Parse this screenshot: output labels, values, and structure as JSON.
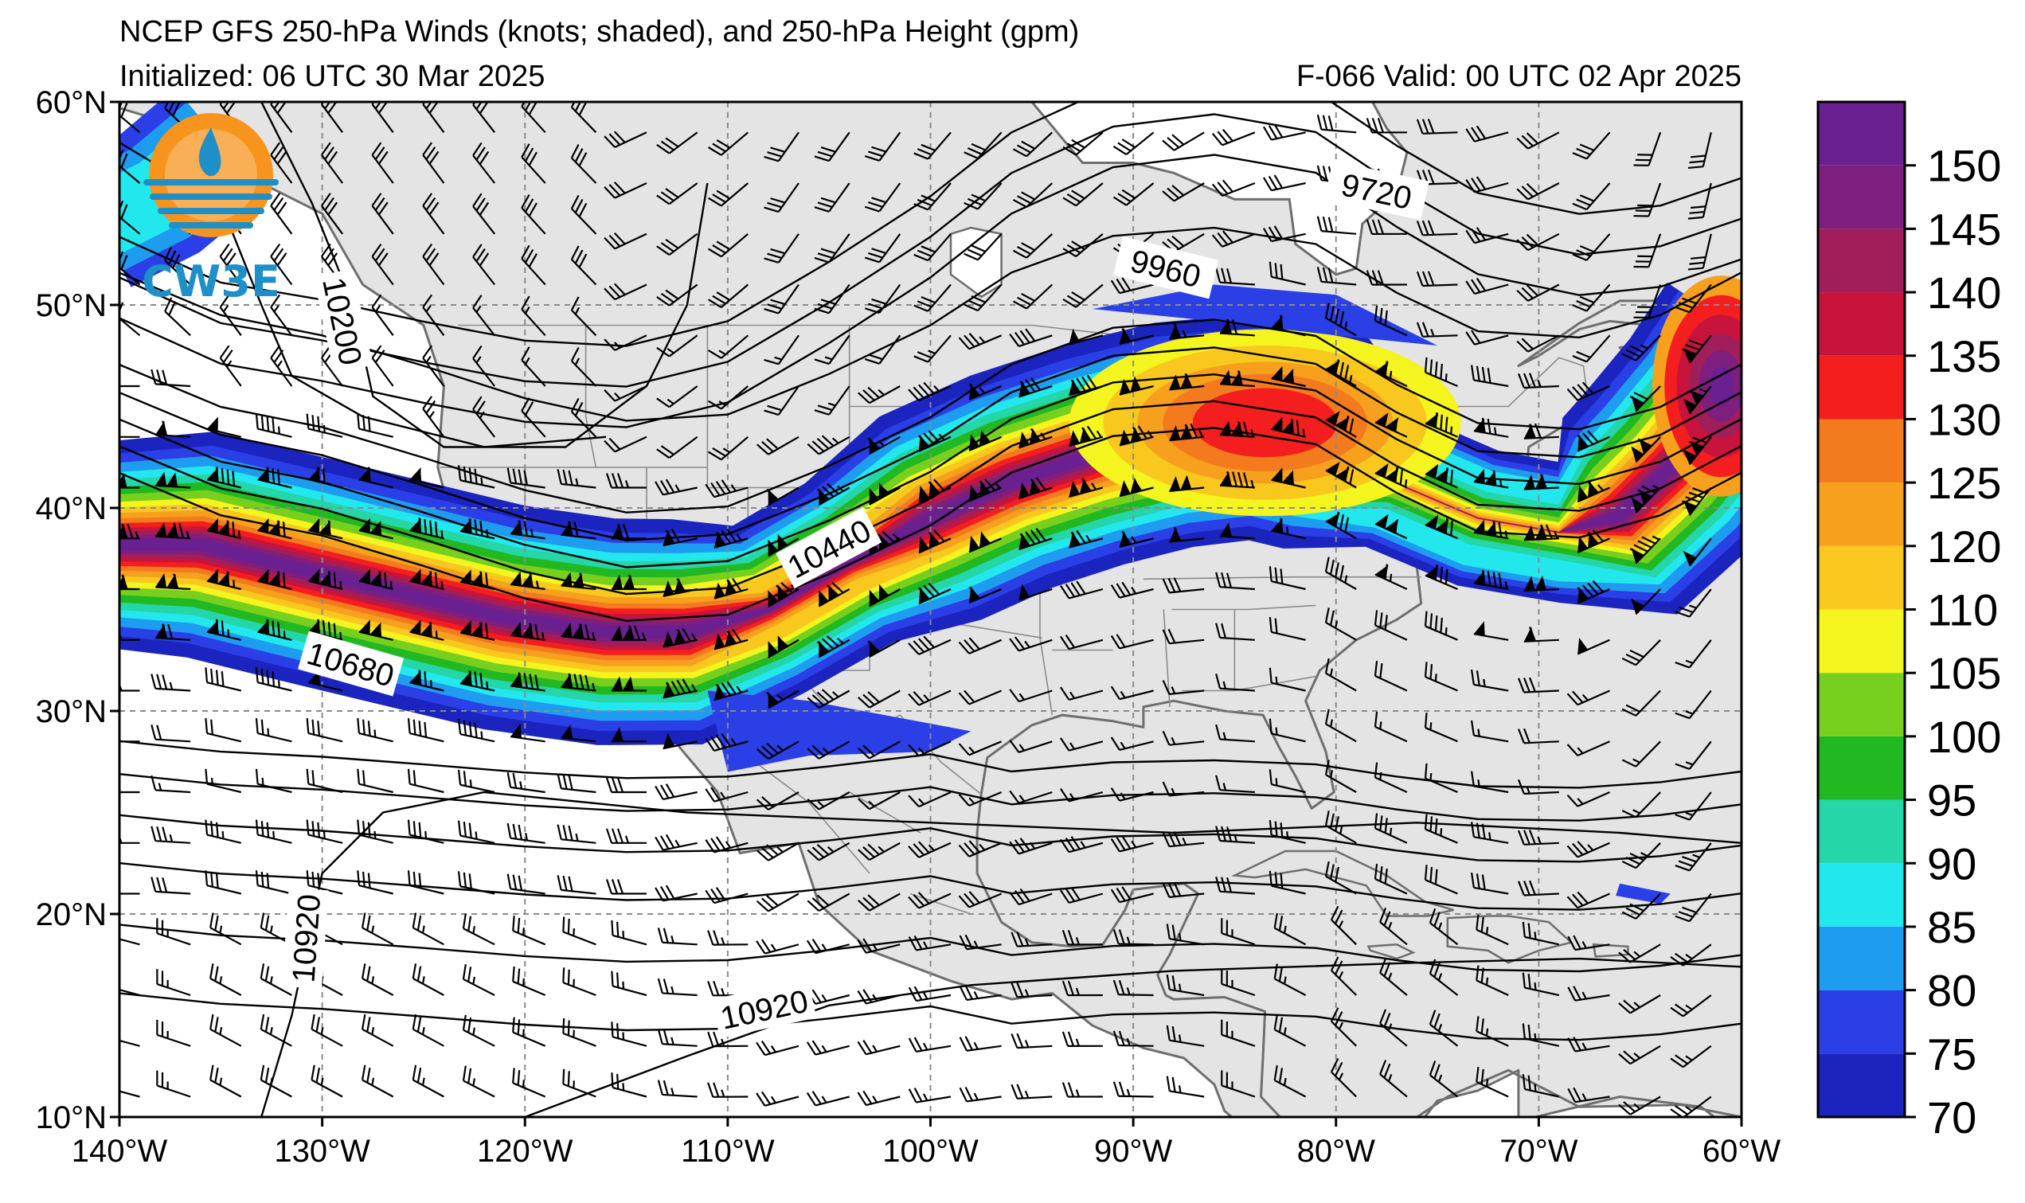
{
  "header": {
    "title": "NCEP GFS 250-hPa Winds (knots; shaded), and 250-hPa Height (gpm)",
    "initialized": "Initialized: 06 UTC 30 Mar 2025",
    "valid": "F-066  Valid: 00 UTC 02 Apr 2025"
  },
  "logo": {
    "text": "CW3E"
  },
  "map": {
    "lon_range": [
      -140,
      -60
    ],
    "lat_range": [
      10,
      60
    ],
    "lon_ticks": [
      {
        "value": -140,
        "label": "140°W"
      },
      {
        "value": -130,
        "label": "130°W"
      },
      {
        "value": -120,
        "label": "120°W"
      },
      {
        "value": -110,
        "label": "110°W"
      },
      {
        "value": -100,
        "label": "100°W"
      },
      {
        "value": -90,
        "label": "90°W"
      },
      {
        "value": -80,
        "label": "80°W"
      },
      {
        "value": -70,
        "label": "70°W"
      },
      {
        "value": -60,
        "label": "60°W"
      }
    ],
    "lat_ticks": [
      {
        "value": 60,
        "label": "60°N"
      },
      {
        "value": 50,
        "label": "50°N"
      },
      {
        "value": 40,
        "label": "40°N"
      },
      {
        "value": 30,
        "label": "30°N"
      },
      {
        "value": 20,
        "label": "20°N"
      },
      {
        "value": 10,
        "label": "10°N"
      }
    ],
    "gridlines": "dashed",
    "land_color": "#e4e4e4",
    "ocean_color": "#ffffff"
  },
  "height_contours": [
    {
      "label": "9720",
      "lon": -78,
      "lat": 55.6
    },
    {
      "label": "9960",
      "lon": -88.4,
      "lat": 51.8
    },
    {
      "label": "10200",
      "lon": -129,
      "lat": 49.2
    },
    {
      "label": "10440",
      "lon": -105,
      "lat": 38.0
    },
    {
      "label": "10680",
      "lon": -128.6,
      "lat": 32.3
    },
    {
      "label": "10920",
      "lon": -130.8,
      "lat": 18.8
    },
    {
      "label": "10920",
      "lon": -108.2,
      "lat": 15.3
    }
  ],
  "colorbar": {
    "levels": [
      70,
      75,
      80,
      85,
      90,
      95,
      100,
      105,
      110,
      120,
      125,
      130,
      135,
      140,
      145,
      150
    ],
    "labels": [
      "70",
      "75",
      "80",
      "85",
      "90",
      "95",
      "100",
      "105",
      "110",
      "120",
      "125",
      "130",
      "135",
      "140",
      "145",
      "150"
    ],
    "colors": [
      "#1c24c0",
      "#2a3fe6",
      "#1e9df0",
      "#22e8ee",
      "#24d6a8",
      "#22b822",
      "#78d01e",
      "#f4f41e",
      "#f8c81e",
      "#f6a01e",
      "#f47a1e",
      "#f41e1e",
      "#c8143c",
      "#a01e5a",
      "#7e1e7e",
      "#6a2090"
    ]
  }
}
